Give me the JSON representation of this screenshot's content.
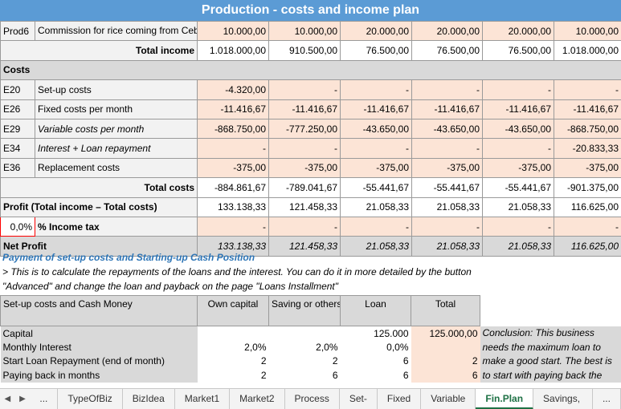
{
  "title": "Production - costs and income plan",
  "prod6": {
    "code": "Prod6",
    "label": "Commission for rice coming from Cebu",
    "values": [
      "10.000,00",
      "10.000,00",
      "20.000,00",
      "20.000,00",
      "20.000,00",
      "10.000,00"
    ]
  },
  "total_income": {
    "label": "Total income",
    "values": [
      "1.018.000,00",
      "910.500,00",
      "76.500,00",
      "76.500,00",
      "76.500,00",
      "1.018.000,00"
    ]
  },
  "costs_header": "Costs",
  "cost_rows": [
    {
      "code": "E20",
      "label": "Set-up costs",
      "italic": false,
      "values": [
        "-4.320,00",
        "-",
        "-",
        "-",
        "-",
        "-"
      ]
    },
    {
      "code": "E26",
      "label": "Fixed costs per month",
      "italic": false,
      "values": [
        "-11.416,67",
        "-11.416,67",
        "-11.416,67",
        "-11.416,67",
        "-11.416,67",
        "-11.416,67"
      ]
    },
    {
      "code": "E29",
      "label": "Variable costs per month",
      "italic": true,
      "values": [
        "-868.750,00",
        "-777.250,00",
        "-43.650,00",
        "-43.650,00",
        "-43.650,00",
        "-868.750,00"
      ]
    },
    {
      "code": "E34",
      "label": "Interest + Loan repayment",
      "italic": true,
      "values": [
        "-",
        "-",
        "-",
        "-",
        "-",
        "-20.833,33"
      ]
    },
    {
      "code": "E36",
      "label": "Replacement costs",
      "italic": false,
      "values": [
        "-375,00",
        "-375,00",
        "-375,00",
        "-375,00",
        "-375,00",
        "-375,00"
      ]
    }
  ],
  "total_costs": {
    "label": "Total costs",
    "values": [
      "-884.861,67",
      "-789.041,67",
      "-55.441,67",
      "-55.441,67",
      "-55.441,67",
      "-901.375,00"
    ]
  },
  "profit": {
    "label": "Profit (Total income – Total costs)",
    "values": [
      "133.138,33",
      "121.458,33",
      "21.058,33",
      "21.058,33",
      "21.058,33",
      "116.625,00"
    ]
  },
  "tax": {
    "rate": "0,0%",
    "label": "% Income tax",
    "values": [
      "-",
      "-",
      "-",
      "-",
      "-",
      "-"
    ]
  },
  "net_profit": {
    "label": "Net Profit",
    "values": [
      "133.138,33",
      "121.458,33",
      "21.058,33",
      "21.058,33",
      "21.058,33",
      "116.625,00"
    ]
  },
  "payment": {
    "title": "Payment of set-up costs and Starting-up Cash Position",
    "note1": "> This is to calculate the repayments of the loans and the interest. You can do it in more detailed by the button",
    "note2": "\"Advanced\" and change the loan and payback on the page \"Loans Installment\"",
    "headers": [
      "Set-up costs and Cash Money",
      "Own capital",
      "Saving or others",
      "Loan",
      "Total"
    ],
    "rows": [
      {
        "label": "Capital",
        "own": "",
        "saving": "",
        "loan": "125.000",
        "total": "125.000,00",
        "concl": "Conclusion: This business"
      },
      {
        "label": "Monthly Interest",
        "own": "2,0%",
        "saving": "2,0%",
        "loan": "0,0%",
        "total": "",
        "concl": "needs the maximum loan to"
      },
      {
        "label": "Start Loan Repayment (end of month)",
        "own": "2",
        "saving": "2",
        "loan": "6",
        "total": "2",
        "concl": "make a good start. The best is"
      },
      {
        "label": "Paying back in months",
        "own": "2",
        "saving": "6",
        "loan": "6",
        "total": "6",
        "concl": "to start with paying back the"
      }
    ]
  },
  "tabs": {
    "more": "...",
    "items": [
      "TypeOfBiz",
      "BizIdea",
      "Market1",
      "Market2",
      "Process",
      "Set-up",
      "Fixed",
      "Variable",
      "Fin.Plan",
      "Savings, Loans"
    ],
    "active": "Fin.Plan",
    "more_right": "..."
  }
}
